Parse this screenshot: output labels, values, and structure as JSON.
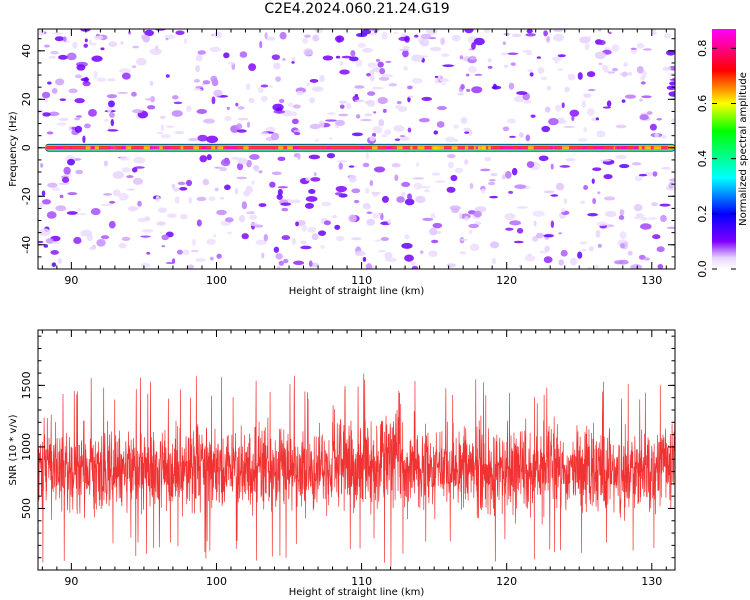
{
  "figure_title": "C2E4.2024.060.21.24.G19",
  "chart_data": [
    {
      "type": "heatmap",
      "title": "",
      "xlabel": "Height of straight line (km)",
      "ylabel": "Frequency (Hz)",
      "xlim": [
        87.7,
        131.6
      ],
      "ylim": [
        -50,
        49
      ],
      "x_ticks": [
        90,
        100,
        110,
        120,
        130
      ],
      "y_ticks": [
        -40,
        -20,
        0,
        20,
        40
      ],
      "band": {
        "frequency_hz": 0,
        "halfwidth_hz": 1.5,
        "amplitude_range": [
          0.7,
          0.85
        ]
      },
      "speckle_amplitude_range": [
        0.0,
        0.1
      ],
      "colorbar": {
        "label": "Normalized spectral amplitude",
        "ticks": [
          0.0,
          0.2,
          0.4,
          0.6,
          0.8
        ],
        "range": [
          0.0,
          0.87
        ],
        "stops": [
          {
            "v": 0.0,
            "color": "#ffffff"
          },
          {
            "v": 0.04,
            "color": "#e8d6ff"
          },
          {
            "v": 0.1,
            "color": "#7f00ff"
          },
          {
            "v": 0.2,
            "color": "#0000ff"
          },
          {
            "v": 0.33,
            "color": "#00ffff"
          },
          {
            "v": 0.5,
            "color": "#00ff00"
          },
          {
            "v": 0.6,
            "color": "#ffff00"
          },
          {
            "v": 0.72,
            "color": "#ff0000"
          },
          {
            "v": 0.87,
            "color": "#ff00ff"
          }
        ]
      }
    },
    {
      "type": "line",
      "title": "",
      "xlabel": "Height of straight line (km)",
      "ylabel": "SNR (10 * v/v)",
      "xlim": [
        87.7,
        131.6
      ],
      "ylim": [
        0,
        1950
      ],
      "x_ticks": [
        90,
        100,
        110,
        120,
        130
      ],
      "y_ticks": [
        500,
        1000,
        1500
      ],
      "line_color": "#f03232",
      "series": [
        {
          "x": [
            87.7,
            88,
            89,
            90,
            91,
            92,
            93,
            94,
            95,
            96,
            97,
            98,
            99,
            100,
            101,
            102,
            103,
            104,
            105,
            106,
            107,
            108,
            109,
            110,
            111,
            112,
            112.5,
            113,
            114,
            115,
            116,
            117,
            118,
            119,
            120,
            121,
            122,
            123,
            124,
            125,
            126,
            127,
            128,
            129,
            130,
            131,
            131.6
          ],
          "values": [
            800,
            860,
            830,
            800,
            850,
            790,
            820,
            830,
            810,
            840,
            800,
            820,
            850,
            810,
            840,
            800,
            830,
            820,
            840,
            800,
            830,
            860,
            840,
            820,
            870,
            950,
            1000,
            860,
            820,
            800,
            830,
            810,
            840,
            800,
            830,
            820,
            790,
            830,
            810,
            800,
            840,
            820,
            800,
            830,
            820,
            840,
            860
          ],
          "spread": [
            420,
            500,
            470,
            460,
            480,
            450,
            470,
            460,
            480,
            470,
            460,
            470,
            480,
            470,
            460,
            480,
            470,
            460,
            470,
            480,
            470,
            500,
            490,
            480,
            500,
            580,
            640,
            520,
            480,
            470,
            460,
            470,
            480,
            460,
            470,
            480,
            460,
            470,
            460,
            470,
            500,
            480,
            470,
            460,
            470,
            480,
            600
          ]
        }
      ]
    }
  ]
}
